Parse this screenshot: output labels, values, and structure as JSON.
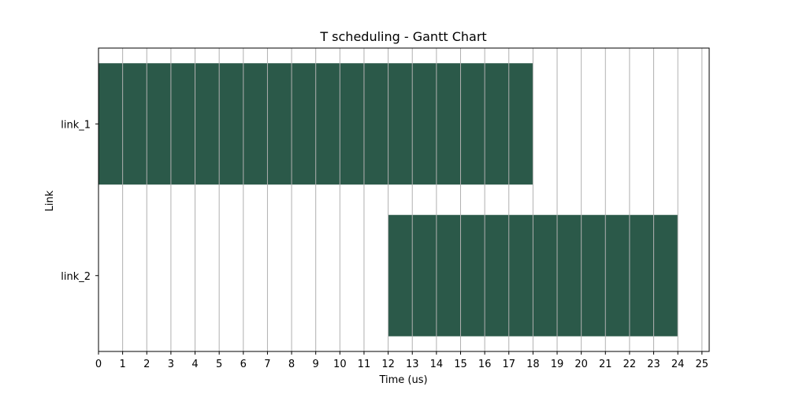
{
  "chart_data": {
    "type": "gantt",
    "title": "T scheduling - Gantt Chart",
    "xlabel": "Time (us)",
    "ylabel": "Link",
    "xlim": [
      0,
      25.3
    ],
    "xticks": [
      0,
      1,
      2,
      3,
      4,
      5,
      6,
      7,
      8,
      9,
      10,
      11,
      12,
      13,
      14,
      15,
      16,
      17,
      18,
      19,
      20,
      21,
      22,
      23,
      24,
      25
    ],
    "grid": "vertical",
    "bar_color": "#2b5949",
    "grid_color": "#b0b0b0",
    "tasks": [
      {
        "label": "link_1",
        "start": 0,
        "end": 18
      },
      {
        "label": "link_2",
        "start": 12,
        "end": 24
      }
    ]
  }
}
